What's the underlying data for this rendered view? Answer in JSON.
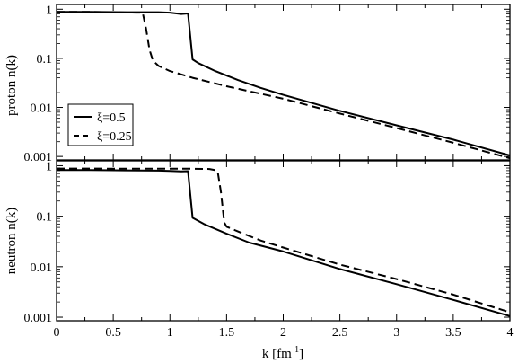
{
  "chart_data": [
    {
      "type": "line",
      "panel": "top",
      "title": "",
      "xlabel": "",
      "ylabel": "proton n(k)",
      "xlim": [
        0,
        4
      ],
      "ylim": [
        0.00085,
        1.25
      ],
      "yscale": "log",
      "xticks": [
        0,
        0.5,
        1,
        1.5,
        2,
        2.5,
        3,
        3.5,
        4
      ],
      "yticks": [
        {
          "value": 0.001,
          "label": "0.001"
        },
        {
          "value": 0.01,
          "label": "0.01"
        },
        {
          "value": 0.1,
          "label": "0.1"
        },
        {
          "value": 1,
          "label": "1"
        }
      ],
      "grid": false,
      "legend": {
        "placement": "lower-left",
        "entries": [
          {
            "label": "ξ=0.5",
            "style": "solid"
          },
          {
            "label": "ξ=0.25",
            "style": "dashed"
          }
        ]
      },
      "series": [
        {
          "name": "ξ=0.5",
          "style": "solid",
          "x": [
            0,
            0.3,
            0.6,
            0.9,
            1.0,
            1.1,
            1.16,
            1.2,
            1.25,
            1.4,
            1.6,
            1.8,
            2.0,
            2.5,
            3.0,
            3.5,
            4.0
          ],
          "y": [
            0.88,
            0.88,
            0.87,
            0.87,
            0.85,
            0.8,
            0.82,
            0.095,
            0.08,
            0.055,
            0.036,
            0.025,
            0.018,
            0.0085,
            0.0043,
            0.0022,
            0.00105
          ]
        },
        {
          "name": "ξ=0.25",
          "style": "dashed",
          "x": [
            0,
            0.3,
            0.6,
            0.7,
            0.76,
            0.79,
            0.82,
            0.85,
            0.9,
            1.0,
            1.2,
            1.5,
            2.0,
            2.5,
            3.0,
            3.5,
            4.0
          ],
          "y": [
            0.88,
            0.88,
            0.86,
            0.85,
            0.85,
            0.4,
            0.15,
            0.09,
            0.07,
            0.055,
            0.04,
            0.027,
            0.015,
            0.0075,
            0.0038,
            0.0019,
            0.00092
          ]
        }
      ]
    },
    {
      "type": "line",
      "panel": "bottom",
      "title": "",
      "xlabel": "k [fm-1]",
      "ylabel": "neutron n(k)",
      "xlim": [
        0,
        4
      ],
      "ylim": [
        0.00085,
        1.25
      ],
      "yscale": "log",
      "xticks": [
        0,
        0.5,
        1,
        1.5,
        2,
        2.5,
        3,
        3.5,
        4
      ],
      "yticks": [
        {
          "value": 0.001,
          "label": "0.001"
        },
        {
          "value": 0.01,
          "label": "0.01"
        },
        {
          "value": 0.1,
          "label": "0.1"
        },
        {
          "value": 1,
          "label": "1"
        }
      ],
      "grid": false,
      "series": [
        {
          "name": "ξ=0.5",
          "style": "solid",
          "x": [
            0,
            0.3,
            0.6,
            0.9,
            1.0,
            1.1,
            1.16,
            1.2,
            1.3,
            1.5,
            1.7,
            2.0,
            2.5,
            3.0,
            3.5,
            4.0
          ],
          "y": [
            0.82,
            0.82,
            0.81,
            0.8,
            0.79,
            0.77,
            0.78,
            0.093,
            0.07,
            0.045,
            0.03,
            0.02,
            0.009,
            0.0045,
            0.0022,
            0.00105
          ]
        },
        {
          "name": "ξ=0.25",
          "style": "dashed",
          "x": [
            0,
            0.3,
            0.6,
            0.9,
            1.0,
            1.2,
            1.35,
            1.42,
            1.45,
            1.48,
            1.5,
            1.6,
            1.8,
            2.0,
            2.5,
            3.0,
            3.5,
            4.0
          ],
          "y": [
            0.88,
            0.88,
            0.87,
            0.87,
            0.87,
            0.87,
            0.86,
            0.8,
            0.3,
            0.075,
            0.062,
            0.05,
            0.033,
            0.024,
            0.011,
            0.0057,
            0.0028,
            0.00125
          ]
        }
      ]
    }
  ],
  "labels": {
    "ylabel_top": "proton n(k)",
    "ylabel_bottom": "neutron n(k)",
    "xlabel_main": "k [fm",
    "xlabel_sup": "-1",
    "xlabel_close": "]"
  }
}
